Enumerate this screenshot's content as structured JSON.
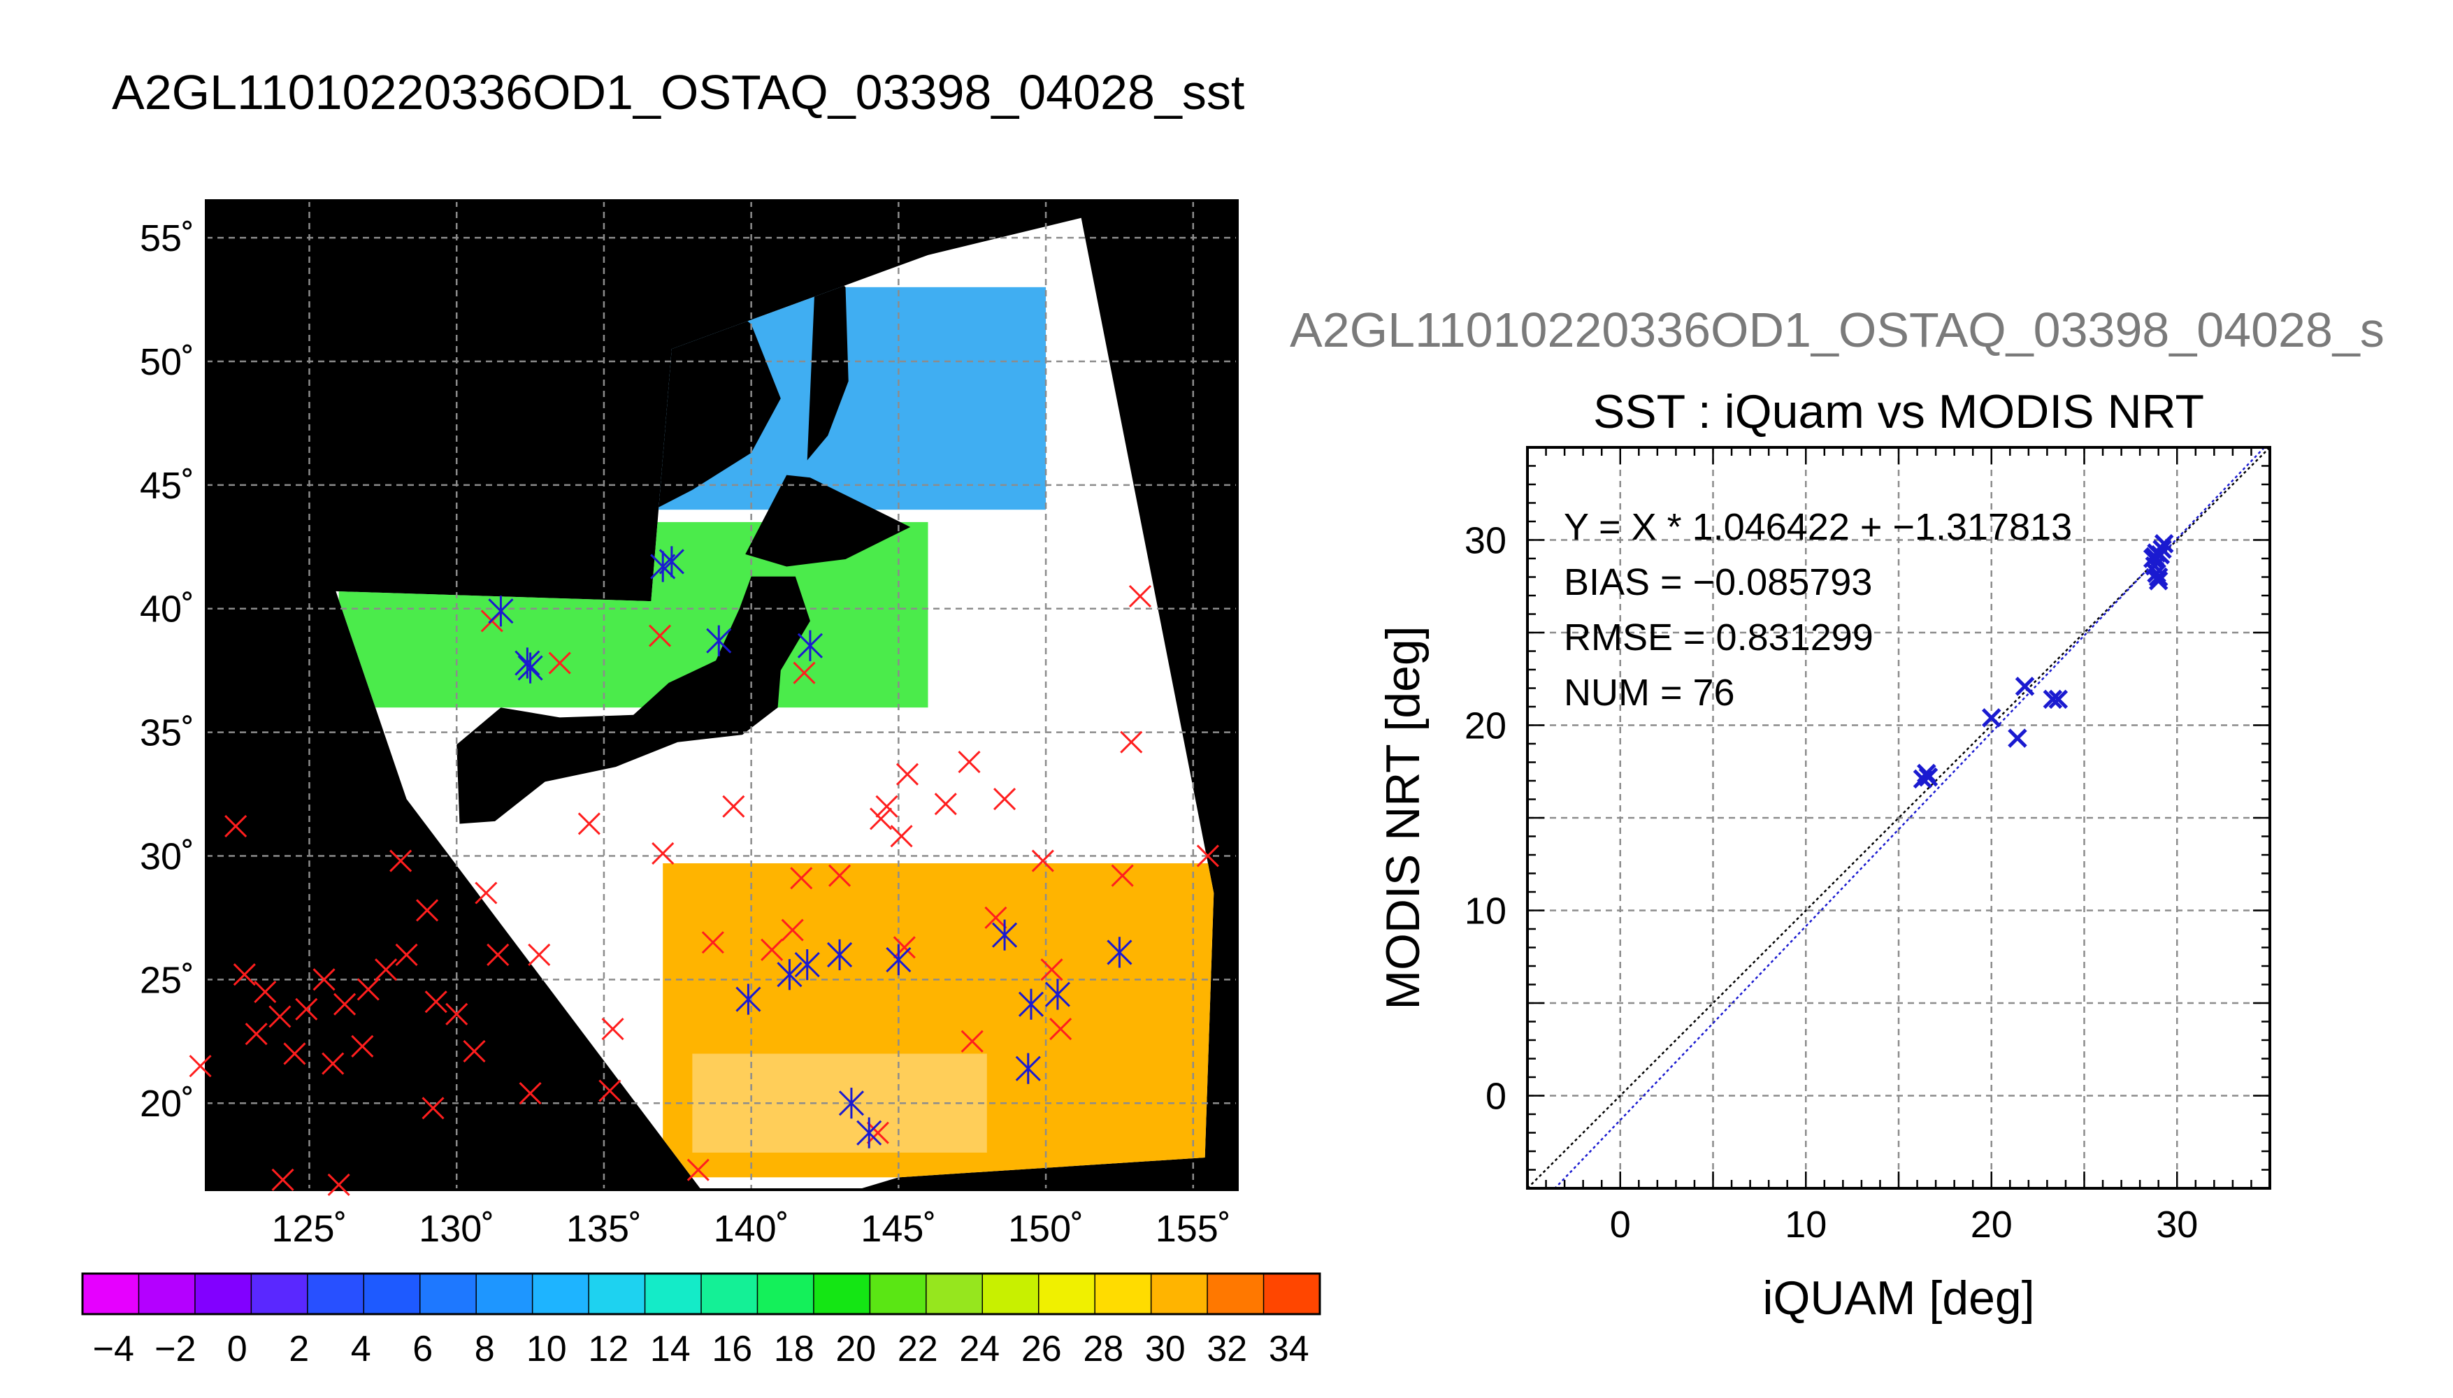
{
  "page": {
    "main_title": "A2GL11010220336OD1_OSTAQ_03398_04028_sst",
    "scatter_super_title": "A2GL11010220336OD1_OSTAQ_03398_04028_s"
  },
  "map": {
    "lon_ticks": [
      "125˚",
      "130˚",
      "135˚",
      "140˚",
      "145˚",
      "150˚",
      "155˚"
    ],
    "lat_ticks": [
      "55˚",
      "50˚",
      "45˚",
      "40˚",
      "35˚",
      "30˚",
      "25˚",
      "20˚"
    ],
    "lon_range": [
      121.5,
      156.5
    ],
    "lat_range": [
      16.5,
      56.5
    ],
    "colors": {
      "ocean_cold": "#1ea0f0",
      "ocean_mid": "#1ee61e",
      "ocean_warm": "#ffb400",
      "cloud": "#ffffff",
      "land": "#000000",
      "marker_red": "#ff1e1e",
      "marker_blue": "#1a1ad0"
    },
    "red_markers": [
      [
        122.5,
        31.2
      ],
      [
        122.8,
        25.2
      ],
      [
        123.5,
        24.5
      ],
      [
        123.2,
        22.8
      ],
      [
        124.0,
        23.5
      ],
      [
        124.5,
        22.0
      ],
      [
        124.9,
        23.8
      ],
      [
        125.5,
        25.0
      ],
      [
        125.8,
        21.6
      ],
      [
        126.2,
        24.0
      ],
      [
        126.8,
        22.3
      ],
      [
        127.0,
        24.6
      ],
      [
        127.6,
        25.4
      ],
      [
        128.1,
        29.8
      ],
      [
        128.3,
        26.0
      ],
      [
        129.0,
        27.8
      ],
      [
        129.3,
        24.1
      ],
      [
        129.2,
        19.8
      ],
      [
        130.0,
        23.6
      ],
      [
        130.6,
        22.1
      ],
      [
        131.0,
        28.5
      ],
      [
        131.4,
        26.0
      ],
      [
        132.5,
        20.4
      ],
      [
        132.8,
        26.0
      ],
      [
        134.5,
        31.3
      ],
      [
        135.3,
        23.0
      ],
      [
        135.2,
        20.5
      ],
      [
        137.0,
        30.1
      ],
      [
        139.4,
        32.0
      ],
      [
        141.4,
        27.0
      ],
      [
        141.7,
        29.1
      ],
      [
        143.0,
        29.2
      ],
      [
        144.4,
        31.5
      ],
      [
        144.6,
        32.0
      ],
      [
        145.1,
        30.8
      ],
      [
        145.3,
        33.3
      ],
      [
        146.6,
        32.1
      ],
      [
        147.4,
        33.8
      ],
      [
        148.3,
        27.5
      ],
      [
        148.6,
        32.3
      ],
      [
        149.9,
        29.8
      ],
      [
        150.5,
        23.0
      ],
      [
        152.6,
        29.2
      ],
      [
        152.9,
        34.6
      ],
      [
        153.2,
        40.5
      ],
      [
        155.5,
        30.0
      ],
      [
        141.8,
        37.4
      ],
      [
        136.9,
        38.9
      ],
      [
        138.7,
        26.5
      ],
      [
        144.3,
        18.8
      ],
      [
        145.2,
        26.3
      ],
      [
        150.2,
        25.4
      ],
      [
        147.5,
        22.5
      ],
      [
        140.7,
        26.2
      ],
      [
        133.5,
        37.8
      ],
      [
        131.2,
        39.5
      ],
      [
        138.2,
        17.3
      ],
      [
        124.1,
        16.9
      ],
      [
        126.0,
        16.7
      ],
      [
        121.3,
        21.5
      ]
    ],
    "blue_markers": [
      [
        131.5,
        39.9
      ],
      [
        132.5,
        37.6
      ],
      [
        137.0,
        41.7
      ],
      [
        137.3,
        41.9
      ],
      [
        138.9,
        38.7
      ],
      [
        142.0,
        38.5
      ],
      [
        139.9,
        24.2
      ],
      [
        141.3,
        25.2
      ],
      [
        141.9,
        25.6
      ],
      [
        143.0,
        26.0
      ],
      [
        145.0,
        25.8
      ],
      [
        148.6,
        26.8
      ],
      [
        149.5,
        24.0
      ],
      [
        150.4,
        24.4
      ],
      [
        149.4,
        21.4
      ],
      [
        143.4,
        20.0
      ],
      [
        144.0,
        18.8
      ],
      [
        152.5,
        26.1
      ],
      [
        132.4,
        37.8
      ]
    ]
  },
  "colorbar": {
    "tick_labels": [
      "−4",
      "−2",
      "0",
      "2",
      "4",
      "6",
      "8",
      "10",
      "12",
      "14",
      "16",
      "18",
      "20",
      "22",
      "24",
      "26",
      "28",
      "30",
      "32",
      "34"
    ],
    "range": [
      -5,
      35
    ],
    "colors": [
      "#e600ff",
      "#b400ff",
      "#8200ff",
      "#5a28ff",
      "#2850ff",
      "#1e5aff",
      "#1e78ff",
      "#1e96ff",
      "#1eb4ff",
      "#1ed2f0",
      "#14ebc8",
      "#14f096",
      "#14f05a",
      "#14e614",
      "#5ae614",
      "#96e61e",
      "#c8f000",
      "#f0f000",
      "#ffdc00",
      "#ffb400",
      "#ff7800",
      "#ff4600"
    ]
  },
  "chart_data": {
    "type": "scatter",
    "title": "SST : iQuam vs MODIS NRT",
    "xlabel": "iQUAM [deg]",
    "ylabel": "MODIS NRT [deg]",
    "xlim": [
      -5,
      35
    ],
    "ylim": [
      -5,
      35
    ],
    "x_ticks": [
      "0",
      "10",
      "20",
      "30"
    ],
    "y_ticks": [
      "0",
      "10",
      "20",
      "30"
    ],
    "grid": true,
    "annotations": [
      "Y = X * 1.046422 + −1.317813",
      "BIAS = −0.085793",
      "RMSE = 0.831299",
      "NUM = 76"
    ],
    "fit_line": {
      "slope": 1.046422,
      "intercept": -1.317813,
      "color": "#1a1ad0"
    },
    "identity_line": {
      "slope": 1,
      "intercept": 0,
      "color": "#000000"
    },
    "marker_color": "#1a1ad0",
    "points": {
      "x": [
        16.3,
        16.5,
        16.6,
        20.0,
        21.4,
        21.8,
        23.3,
        23.6,
        28.7,
        28.8,
        28.9,
        29.0,
        29.1,
        29.2,
        29.3,
        28.9,
        29.0,
        28.8
      ],
      "y": [
        17.1,
        17.4,
        17.2,
        20.4,
        19.3,
        22.1,
        21.4,
        21.4,
        29.0,
        28.6,
        28.2,
        27.8,
        29.2,
        29.5,
        29.8,
        29.3,
        28.0,
        29.1
      ]
    }
  }
}
